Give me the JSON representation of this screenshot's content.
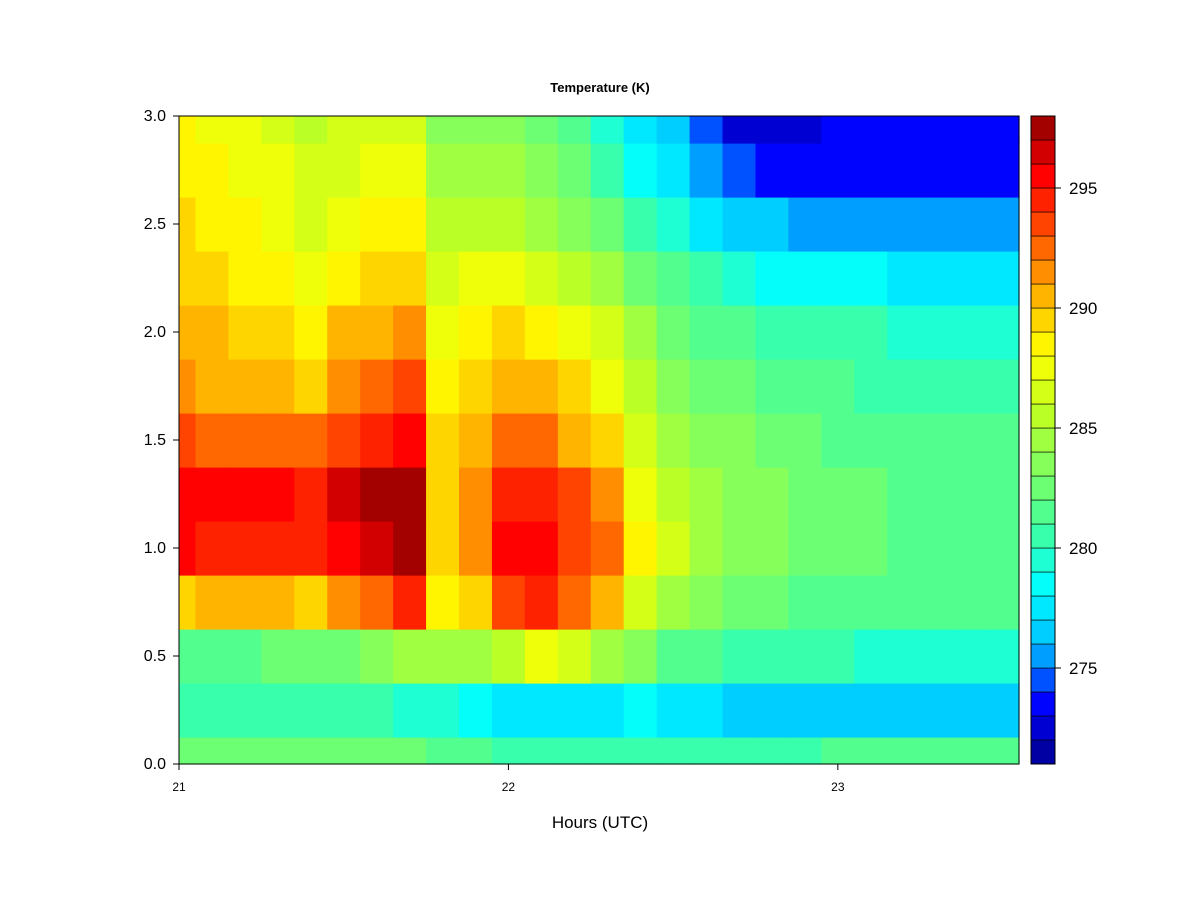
{
  "chart_data": {
    "type": "heatmap",
    "title": "Temperature (K)",
    "xlabel": "Hours (UTC)",
    "ylabel": "",
    "x_ticks": [
      21,
      22,
      23
    ],
    "x_tick_labels": [
      "21",
      "22",
      "23"
    ],
    "xlim": [
      21,
      23.55
    ],
    "y_ticks": [
      0.0,
      0.5,
      1.0,
      1.5,
      2.0,
      2.5,
      3.0
    ],
    "y_tick_labels": [
      "0.0",
      "0.5",
      "1.0",
      "1.5",
      "2.0",
      "2.5",
      "3.0"
    ],
    "ylim": [
      0,
      3
    ],
    "colorbar": {
      "min": 271,
      "max": 298,
      "ticks": [
        275,
        280,
        285,
        290,
        295
      ],
      "tick_labels": [
        "275",
        "280",
        "285",
        "290",
        "295"
      ],
      "levels": 27,
      "colors": [
        "#00008B",
        "#0000FF",
        "#00BFFF",
        "#00FFFF",
        "#40FFA0",
        "#80FF60",
        "#C0FF20",
        "#FFFF00",
        "#FFB000",
        "#FF5000",
        "#FF0000",
        "#8B0000"
      ]
    },
    "x": [
      21.0,
      21.1,
      21.2,
      21.3,
      21.4,
      21.5,
      21.6,
      21.7,
      21.8,
      21.9,
      22.0,
      22.1,
      22.2,
      22.3,
      22.4,
      22.5,
      22.6,
      22.7,
      22.8,
      22.9,
      23.0,
      23.1,
      23.2,
      23.3,
      23.4,
      23.5
    ],
    "y": [
      0.0,
      0.25,
      0.5,
      0.75,
      1.0,
      1.25,
      1.5,
      1.75,
      2.0,
      2.25,
      2.5,
      2.75,
      3.0
    ],
    "z": [
      [
        282.5,
        282.5,
        282.5,
        282.5,
        282.5,
        282.5,
        282.5,
        282.0,
        281.5,
        281.0,
        280.5,
        280.0,
        280.0,
        280.0,
        280.5,
        280.5,
        280.5,
        280.5,
        280.5,
        280.5,
        281.0,
        281.0,
        281.0,
        281.0,
        281.0,
        281.0
      ],
      [
        280.0,
        280.0,
        280.0,
        280.0,
        280.0,
        280.5,
        280.0,
        279.5,
        279.0,
        278.5,
        277.5,
        277.0,
        277.0,
        277.5,
        278.0,
        277.5,
        277.0,
        276.5,
        276.5,
        276.5,
        276.5,
        276.0,
        276.0,
        276.0,
        276.0,
        276.0
      ],
      [
        281.5,
        281.5,
        281.5,
        282.0,
        282.0,
        282.5,
        283.0,
        284.0,
        284.5,
        284.0,
        285.5,
        287.0,
        286.0,
        284.5,
        283.0,
        281.5,
        281.0,
        280.5,
        280.0,
        280.0,
        280.0,
        279.5,
        279.5,
        279.5,
        279.5,
        279.5
      ],
      [
        289.5,
        290.0,
        290.5,
        290.0,
        289.0,
        291.0,
        292.0,
        294.0,
        288.0,
        289.0,
        293.5,
        294.0,
        292.0,
        290.0,
        286.5,
        284.5,
        283.5,
        282.5,
        282.0,
        281.5,
        281.5,
        281.0,
        281.0,
        281.0,
        281.0,
        281.0
      ],
      [
        295.0,
        294.5,
        294.5,
        294.5,
        294.5,
        295.5,
        296.0,
        297.0,
        289.0,
        291.0,
        295.5,
        295.5,
        293.5,
        292.0,
        288.5,
        286.0,
        284.5,
        283.5,
        283.0,
        282.5,
        282.0,
        282.0,
        281.5,
        281.5,
        281.5,
        281.5
      ],
      [
        295.5,
        295.0,
        295.0,
        295.0,
        294.5,
        296.0,
        297.0,
        297.5,
        289.5,
        291.0,
        294.5,
        294.5,
        293.0,
        291.0,
        287.5,
        285.5,
        284.0,
        283.5,
        283.0,
        282.5,
        282.0,
        282.0,
        281.5,
        281.5,
        281.5,
        281.5
      ],
      [
        293.0,
        292.5,
        292.5,
        292.5,
        292.0,
        293.5,
        294.5,
        295.5,
        289.0,
        290.5,
        292.0,
        292.0,
        290.5,
        289.0,
        286.0,
        284.5,
        283.5,
        283.0,
        282.5,
        282.0,
        281.5,
        281.5,
        281.0,
        281.0,
        281.0,
        281.0
      ],
      [
        291.0,
        290.5,
        290.5,
        290.5,
        289.5,
        291.5,
        292.0,
        293.5,
        288.0,
        289.5,
        290.5,
        290.0,
        289.0,
        287.5,
        285.0,
        283.5,
        282.5,
        282.0,
        281.5,
        281.0,
        281.0,
        280.5,
        280.5,
        280.5,
        280.5,
        280.5
      ],
      [
        290.5,
        290.0,
        289.5,
        289.5,
        288.5,
        290.0,
        290.5,
        291.5,
        287.5,
        288.5,
        289.0,
        288.5,
        287.5,
        286.0,
        284.0,
        282.5,
        281.5,
        281.0,
        280.5,
        280.0,
        280.0,
        280.0,
        279.5,
        279.5,
        279.5,
        279.5
      ],
      [
        289.5,
        289.0,
        288.5,
        288.5,
        287.5,
        288.5,
        289.0,
        289.5,
        286.5,
        287.0,
        287.0,
        286.5,
        285.5,
        284.5,
        282.5,
        281.0,
        280.0,
        279.0,
        278.5,
        278.0,
        278.0,
        278.0,
        277.5,
        277.5,
        277.5,
        277.5
      ],
      [
        289.0,
        288.5,
        288.0,
        287.5,
        286.5,
        287.5,
        288.0,
        288.5,
        285.5,
        285.5,
        285.5,
        284.5,
        283.5,
        282.5,
        280.5,
        279.0,
        277.5,
        276.5,
        276.0,
        275.5,
        275.5,
        275.5,
        275.5,
        275.0,
        275.0,
        275.0
      ],
      [
        288.5,
        288.0,
        287.5,
        287.0,
        286.0,
        286.5,
        287.0,
        287.0,
        284.5,
        284.5,
        284.0,
        283.0,
        282.0,
        280.5,
        278.5,
        277.0,
        275.5,
        274.0,
        273.5,
        273.5,
        273.5,
        273.5,
        273.5,
        273.5,
        273.5,
        273.5
      ],
      [
        288.0,
        287.5,
        287.0,
        286.5,
        285.5,
        286.0,
        286.0,
        286.0,
        283.5,
        283.5,
        283.0,
        282.0,
        281.0,
        279.5,
        277.5,
        276.0,
        274.5,
        272.5,
        272.0,
        272.5,
        273.0,
        273.0,
        273.0,
        273.5,
        273.5,
        273.5
      ]
    ]
  }
}
